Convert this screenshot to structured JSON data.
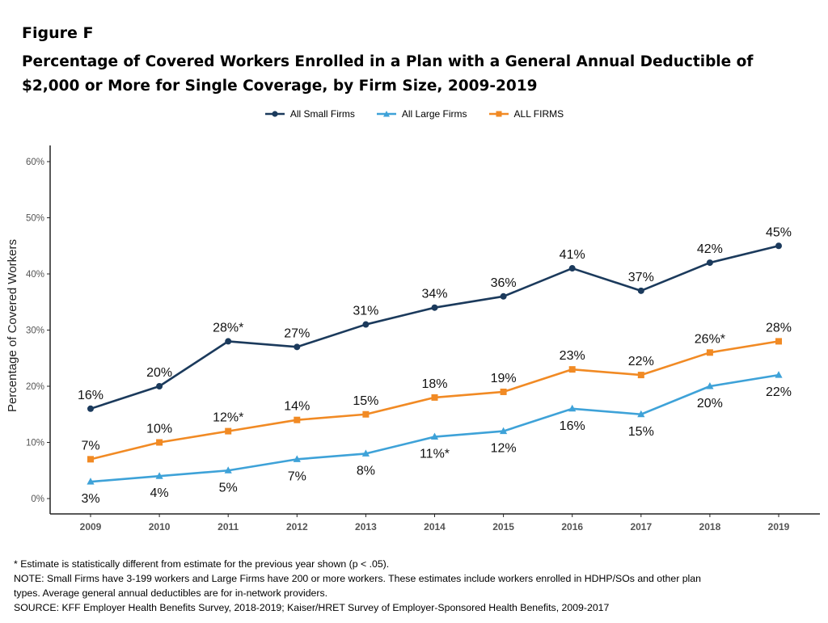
{
  "figure_label": "Figure F",
  "title_line1": "Percentage of Covered Workers Enrolled in a Plan with a General Annual Deductible of",
  "title_line2": "$2,000 or More for Single Coverage, by Firm Size, 2009-2019",
  "notes": [
    "* Estimate is statistically different from estimate for the previous year shown (p < .05).",
    "NOTE: Small Firms have 3-199 workers and Large Firms have 200 or more workers. These estimates include workers enrolled in HDHP/SOs and other plan",
    "types. Average general annual deductibles are for in-network providers.",
    "SOURCE: KFF Employer Health Benefits Survey, 2018-2019; Kaiser/HRET Survey of Employer-Sponsored Health Benefits, 2009-2017"
  ],
  "colors": {
    "small": "#1b3a5c",
    "large": "#3ea2d8",
    "all": "#f18a24",
    "axis": "#222222",
    "tick": "#555555"
  },
  "chart_data": {
    "type": "line",
    "x": [
      "2009",
      "2010",
      "2011",
      "2012",
      "2013",
      "2014",
      "2015",
      "2016",
      "2017",
      "2018",
      "2019"
    ],
    "ylabel": "Percentage of Covered Workers",
    "ylim": [
      0,
      60
    ],
    "yticks": [
      "0%",
      "10%",
      "20%",
      "30%",
      "40%",
      "50%",
      "60%"
    ],
    "grid": false,
    "legend_position": "top",
    "series": [
      {
        "name": "All Small Firms",
        "marker": "circle",
        "color": "#1b3a5c",
        "values": [
          16,
          20,
          28,
          27,
          31,
          34,
          36,
          41,
          37,
          42,
          45
        ],
        "labels": [
          "16%",
          "20%",
          "28%*",
          "27%",
          "31%",
          "34%",
          "36%",
          "41%",
          "37%",
          "42%",
          "45%"
        ],
        "label_pos": "above"
      },
      {
        "name": "All Large Firms",
        "marker": "triangle",
        "color": "#3ea2d8",
        "values": [
          3,
          4,
          5,
          7,
          8,
          11,
          12,
          16,
          15,
          20,
          22
        ],
        "labels": [
          "3%",
          "4%",
          "5%",
          "7%",
          "8%",
          "11%*",
          "12%",
          "16%",
          "15%",
          "20%",
          "22%"
        ],
        "label_pos": "below"
      },
      {
        "name": "ALL FIRMS",
        "marker": "square",
        "color": "#f18a24",
        "values": [
          7,
          10,
          12,
          14,
          15,
          18,
          19,
          23,
          22,
          26,
          28
        ],
        "labels": [
          "7%",
          "10%",
          "12%*",
          "14%",
          "15%",
          "18%",
          "19%",
          "23%",
          "22%",
          "26%*",
          "28%"
        ],
        "label_pos": "above"
      }
    ]
  }
}
